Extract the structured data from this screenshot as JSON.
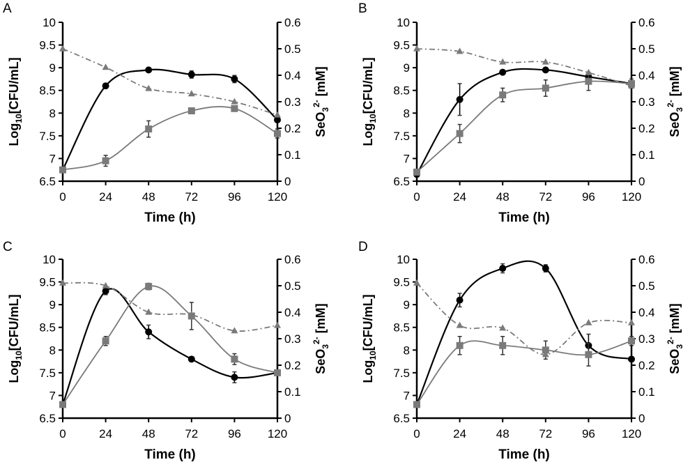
{
  "chart_data": [
    {
      "type": "line",
      "panel_label": "A",
      "xlabel": "Time (h)",
      "ylabel_left": "Log10[CFU/mL]",
      "ylabel_right": "SeO32- [mM]",
      "ylim_left": [
        6.5,
        10
      ],
      "ylim_right": [
        0,
        0.6
      ],
      "x_ticks": [
        0,
        24,
        48,
        72,
        96,
        120
      ],
      "y_ticks_left": [
        "6.5",
        "7",
        "7.5",
        "8",
        "8.5",
        "9",
        "9.5",
        "10"
      ],
      "y_ticks_right": [
        "0",
        "0.1",
        "0.2",
        "0.3",
        "0.4",
        "0.5",
        "0.6"
      ],
      "series": [
        {
          "name": "log CFU/mL (circles)",
          "axis": "left",
          "marker": "circle",
          "color": "#000000",
          "x": [
            0,
            24,
            48,
            72,
            96,
            120
          ],
          "values": [
            6.75,
            8.6,
            8.95,
            8.85,
            8.75,
            7.85
          ],
          "errors": [
            0.03,
            0.05,
            0.03,
            0.08,
            0.08,
            0.03
          ]
        },
        {
          "name": "log CFU/mL (squares)",
          "axis": "left",
          "marker": "square",
          "color": "#7a7a7a",
          "x": [
            0,
            24,
            48,
            72,
            96,
            120
          ],
          "values": [
            6.75,
            6.95,
            7.65,
            8.05,
            8.1,
            7.55
          ],
          "errors": [
            0.05,
            0.12,
            0.18,
            0.05,
            0.05,
            0.1
          ]
        },
        {
          "name": "SeO3 2- [mM] (triangles)",
          "axis": "right",
          "marker": "triangle",
          "color": "#7a7a7a",
          "dashed": true,
          "x": [
            0,
            24,
            48,
            72,
            96,
            120
          ],
          "values": [
            0.5,
            0.43,
            0.35,
            0.33,
            0.3,
            0.25
          ],
          "errors": [
            0,
            0,
            0,
            0,
            0,
            0
          ]
        }
      ]
    },
    {
      "type": "line",
      "panel_label": "B",
      "xlabel": "Time (h)",
      "ylabel_left": "Log10[CFU/mL]",
      "ylabel_right": "SeO32- [mM]",
      "ylim_left": [
        6.5,
        10
      ],
      "ylim_right": [
        0,
        0.6
      ],
      "x_ticks": [
        0,
        24,
        48,
        72,
        96,
        120
      ],
      "y_ticks_left": [
        "6.5",
        "7",
        "7.5",
        "8",
        "8.5",
        "9",
        "9.5",
        "10"
      ],
      "y_ticks_right": [
        "0",
        "0.1",
        "0.2",
        "0.3",
        "0.4",
        "0.5",
        "0.6"
      ],
      "series": [
        {
          "name": "log CFU/mL (circles)",
          "axis": "left",
          "marker": "circle",
          "color": "#000000",
          "x": [
            0,
            24,
            48,
            72,
            96,
            120
          ],
          "values": [
            6.65,
            8.3,
            8.9,
            8.95,
            8.8,
            8.65
          ],
          "errors": [
            0.05,
            0.35,
            0.05,
            0.05,
            0.05,
            0.05
          ]
        },
        {
          "name": "log CFU/mL (squares)",
          "axis": "left",
          "marker": "square",
          "color": "#7a7a7a",
          "x": [
            0,
            24,
            48,
            72,
            96,
            120
          ],
          "values": [
            6.7,
            7.55,
            8.4,
            8.55,
            8.7,
            8.65
          ],
          "errors": [
            0.05,
            0.2,
            0.15,
            0.18,
            0.2,
            0.1
          ]
        },
        {
          "name": "SeO3 2- [mM] (triangles)",
          "axis": "right",
          "marker": "triangle",
          "color": "#7a7a7a",
          "dashed": true,
          "x": [
            0,
            24,
            48,
            72,
            96,
            120
          ],
          "values": [
            0.5,
            0.49,
            0.45,
            0.45,
            0.41,
            0.36
          ],
          "errors": [
            0,
            0,
            0,
            0,
            0,
            0
          ]
        }
      ]
    },
    {
      "type": "line",
      "panel_label": "C",
      "xlabel": "Time (h)",
      "ylabel_left": "Log10[CFU/mL]",
      "ylabel_right": "SeO32- [mM]",
      "ylim_left": [
        6.5,
        10
      ],
      "ylim_right": [
        0,
        0.6
      ],
      "x_ticks": [
        0,
        24,
        48,
        72,
        96,
        120
      ],
      "y_ticks_left": [
        "6.5",
        "7",
        "7.5",
        "8",
        "8.5",
        "9",
        "9.5",
        "10"
      ],
      "y_ticks_right": [
        "0",
        "0.1",
        "0.2",
        "0.3",
        "0.4",
        "0.5",
        "0.6"
      ],
      "series": [
        {
          "name": "log CFU/mL (circles)",
          "axis": "left",
          "marker": "circle",
          "color": "#000000",
          "x": [
            0,
            24,
            48,
            72,
            96,
            120
          ],
          "values": [
            6.8,
            9.3,
            8.4,
            7.8,
            7.4,
            7.5
          ],
          "errors": [
            0.03,
            0.08,
            0.15,
            0.05,
            0.12,
            0.05
          ]
        },
        {
          "name": "log CFU/mL (squares)",
          "axis": "left",
          "marker": "square",
          "color": "#7a7a7a",
          "x": [
            0,
            24,
            48,
            72,
            96,
            120
          ],
          "values": [
            6.8,
            8.2,
            9.4,
            8.75,
            7.8,
            7.5
          ],
          "errors": [
            0.05,
            0.1,
            0.07,
            0.3,
            0.12,
            0.05
          ]
        },
        {
          "name": "SeO3 2- [mM] (triangles)",
          "axis": "right",
          "marker": "triangle",
          "color": "#7a7a7a",
          "dashed": true,
          "x": [
            0,
            24,
            48,
            72,
            96,
            120
          ],
          "values": [
            0.51,
            0.5,
            0.4,
            0.39,
            0.33,
            0.35
          ],
          "errors": [
            0,
            0,
            0,
            0,
            0,
            0
          ]
        }
      ]
    },
    {
      "type": "line",
      "panel_label": "D",
      "xlabel": "Time (h)",
      "ylabel_left": "Log10[CFU/mL]",
      "ylabel_right": "SeO32- [mM]",
      "ylim_left": [
        6.5,
        10
      ],
      "ylim_right": [
        0,
        0.6
      ],
      "x_ticks": [
        0,
        24,
        48,
        72,
        96,
        120
      ],
      "y_ticks_left": [
        "6.5",
        "7",
        "7.5",
        "8",
        "8.5",
        "9",
        "9.5",
        "10"
      ],
      "y_ticks_right": [
        "0",
        "0.1",
        "0.2",
        "0.3",
        "0.4",
        "0.5",
        "0.6"
      ],
      "series": [
        {
          "name": "log CFU/mL (circles)",
          "axis": "left",
          "marker": "circle",
          "color": "#000000",
          "x": [
            0,
            24,
            48,
            72,
            96,
            120
          ],
          "values": [
            6.8,
            9.1,
            9.8,
            9.8,
            8.1,
            7.8
          ],
          "errors": [
            0.03,
            0.15,
            0.1,
            0.08,
            0.25,
            0.05
          ]
        },
        {
          "name": "log CFU/mL (squares)",
          "axis": "left",
          "marker": "square",
          "color": "#7a7a7a",
          "x": [
            0,
            24,
            48,
            72,
            96,
            120
          ],
          "values": [
            6.8,
            8.1,
            8.1,
            8.0,
            7.9,
            8.2
          ],
          "errors": [
            0.05,
            0.2,
            0.2,
            0.2,
            0.25,
            0.1
          ]
        },
        {
          "name": "SeO3 2- [mM] (triangles)",
          "axis": "right",
          "marker": "triangle",
          "color": "#7a7a7a",
          "dashed": true,
          "x": [
            0,
            24,
            48,
            72,
            96,
            120
          ],
          "values": [
            0.51,
            0.35,
            0.34,
            0.24,
            0.36,
            0.36
          ],
          "errors": [
            0,
            0,
            0,
            0,
            0,
            0
          ]
        }
      ]
    }
  ]
}
